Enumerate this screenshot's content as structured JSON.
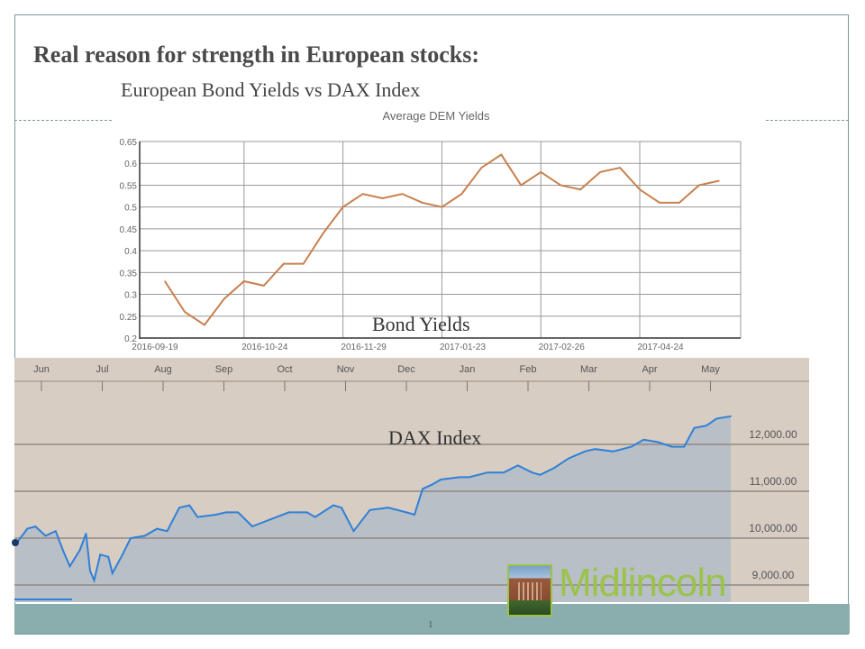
{
  "slide": {
    "title": "Real reason for strength in European stocks:",
    "subtitle": "European Bond Yields vs DAX Index",
    "page_number": "1",
    "logo_text": "Midlincoln",
    "colors": {
      "bond_line": "#c8804e",
      "dax_line": "#2f80d8",
      "dax_bg": "#d8cdc3",
      "dax_fill": "#b8bfc6",
      "footer": "#8aaeae",
      "logo_green": "#9bc34a"
    }
  },
  "chart_data": [
    {
      "type": "line",
      "title": "Average DEM Yields",
      "overlay_label": "Bond Yields",
      "xlabel": "",
      "ylabel": "",
      "x_tick_labels": [
        "2016-09-19",
        "2016-10-24",
        "2016-11-29",
        "2017-01-23",
        "2017-02-26",
        "2017-04-24"
      ],
      "x_tick_indices": [
        0,
        4,
        9,
        14,
        19,
        24
      ],
      "y_ticks": [
        "0.2",
        "0.25",
        "0.3",
        "0.35",
        "0.4",
        "0.45",
        "0.5",
        "0.55",
        "0.6",
        "0.65"
      ],
      "ylim": [
        0.2,
        0.65
      ],
      "grid": true,
      "values": [
        0.33,
        0.26,
        0.23,
        0.29,
        0.33,
        0.32,
        0.37,
        0.37,
        0.44,
        0.5,
        0.53,
        0.52,
        0.53,
        0.51,
        0.5,
        0.53,
        0.59,
        0.62,
        0.55,
        0.58,
        0.55,
        0.54,
        0.58,
        0.59,
        0.54,
        0.51,
        0.51,
        0.55,
        0.56
      ]
    },
    {
      "type": "area",
      "title": "",
      "overlay_label": "DAX Index",
      "x_unit": "days since start of June 2016",
      "months": [
        "Jun",
        "Jul",
        "Aug",
        "Sep",
        "Oct",
        "Nov",
        "Dec",
        "Jan",
        "Feb",
        "Mar",
        "Apr",
        "May"
      ],
      "y_ticks": [
        "12,000.00",
        "11,000.00",
        "10,000.00",
        "9,000.00"
      ],
      "y_tick_values": [
        12000,
        11000,
        10000,
        9000
      ],
      "axis_position": "right",
      "grid": true,
      "points": [
        [
          -13,
          9850
        ],
        [
          -7,
          10200
        ],
        [
          -3,
          10250
        ],
        [
          2,
          10050
        ],
        [
          7,
          10150
        ],
        [
          11,
          9700
        ],
        [
          14,
          9400
        ],
        [
          19,
          9750
        ],
        [
          22,
          10100
        ],
        [
          24,
          9300
        ],
        [
          26,
          9100
        ],
        [
          29,
          9650
        ],
        [
          33,
          9600
        ],
        [
          35,
          9250
        ],
        [
          40,
          9650
        ],
        [
          44,
          10000
        ],
        [
          51,
          10050
        ],
        [
          57,
          10200
        ],
        [
          62,
          10150
        ],
        [
          68,
          10650
        ],
        [
          73,
          10700
        ],
        [
          77,
          10450
        ],
        [
          86,
          10500
        ],
        [
          91,
          10550
        ],
        [
          97,
          10550
        ],
        [
          104,
          10250
        ],
        [
          113,
          10400
        ],
        [
          122,
          10550
        ],
        [
          131,
          10550
        ],
        [
          135,
          10450
        ],
        [
          144,
          10700
        ],
        [
          148,
          10650
        ],
        [
          154,
          10150
        ],
        [
          162,
          10600
        ],
        [
          171,
          10650
        ],
        [
          180,
          10550
        ],
        [
          184,
          10500
        ],
        [
          188,
          11050
        ],
        [
          193,
          11150
        ],
        [
          197,
          11250
        ],
        [
          206,
          11300
        ],
        [
          211,
          11300
        ],
        [
          220,
          11400
        ],
        [
          228,
          11400
        ],
        [
          235,
          11550
        ],
        [
          242,
          11400
        ],
        [
          246,
          11350
        ],
        [
          253,
          11500
        ],
        [
          260,
          11700
        ],
        [
          268,
          11850
        ],
        [
          273,
          11900
        ],
        [
          282,
          11850
        ],
        [
          291,
          11950
        ],
        [
          297,
          12100
        ],
        [
          304,
          12050
        ],
        [
          311,
          11950
        ],
        [
          317,
          11950
        ],
        [
          322,
          12350
        ],
        [
          328,
          12400
        ],
        [
          333,
          12550
        ],
        [
          340,
          12600
        ]
      ]
    }
  ]
}
